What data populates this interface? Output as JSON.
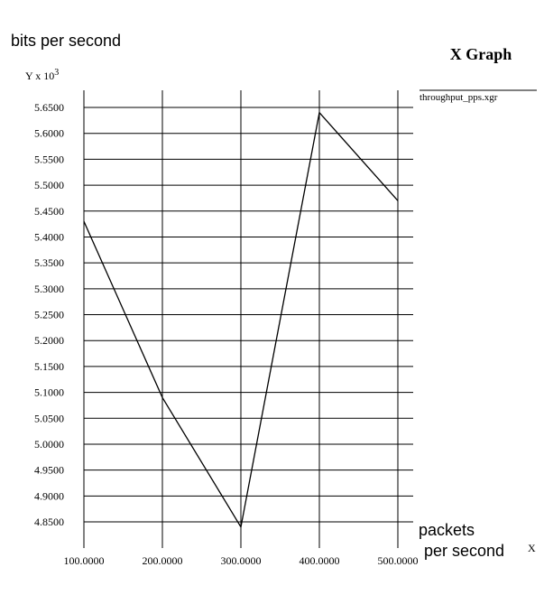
{
  "chart_data": {
    "type": "line",
    "title": "X Graph",
    "ylabel": "bits per second",
    "xlabel_line1": "packets",
    "xlabel_line2": "per second",
    "y_unit_prefix": "Y x 10",
    "y_unit_exponent": "3",
    "x_unit": "X",
    "x_ticks": [
      "100.0000",
      "200.0000",
      "300.0000",
      "400.0000",
      "500.0000"
    ],
    "x_tick_values": [
      100,
      200,
      300,
      400,
      500
    ],
    "y_ticks": [
      "4.8500",
      "4.9000",
      "4.9500",
      "5.0000",
      "5.0500",
      "5.1000",
      "5.1500",
      "5.2000",
      "5.2500",
      "5.3000",
      "5.3500",
      "5.4000",
      "5.4500",
      "5.5000",
      "5.5500",
      "5.6000",
      "5.6500"
    ],
    "y_tick_values": [
      4.85,
      4.9,
      4.95,
      5.0,
      5.05,
      5.1,
      5.15,
      5.2,
      5.25,
      5.3,
      5.35,
      5.4,
      5.45,
      5.5,
      5.55,
      5.6,
      5.65
    ],
    "xlim": [
      100,
      500
    ],
    "ylim": [
      4.85,
      5.65
    ],
    "grid": true,
    "legend_position": "top-right",
    "series": [
      {
        "name": "throughput_pps.xgr",
        "color": "#000000",
        "x": [
          100,
          200,
          300,
          400,
          500
        ],
        "y": [
          5.43,
          5.09,
          4.84,
          5.64,
          5.47
        ]
      }
    ]
  }
}
